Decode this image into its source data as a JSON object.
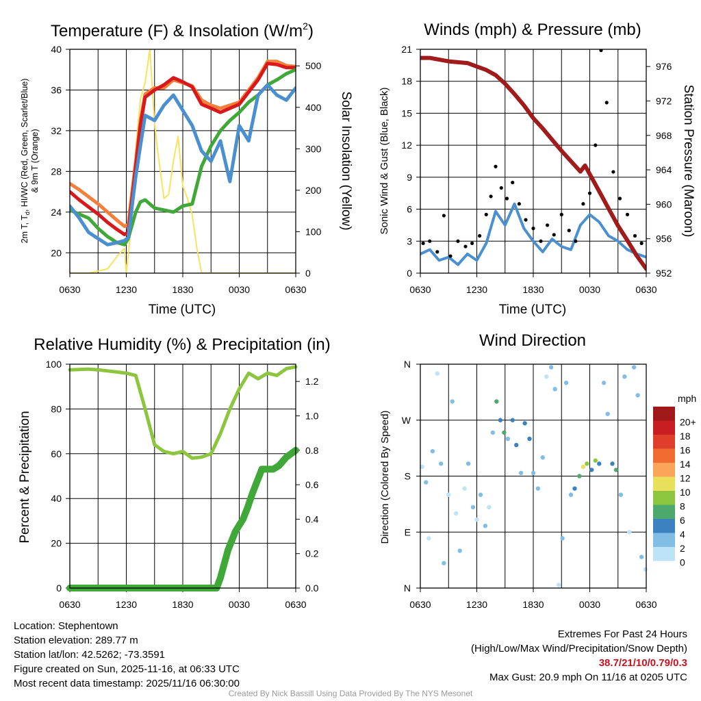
{
  "panels": {
    "temperature": {
      "title_main": "Temperature (F) & Insolation (W/m",
      "title_sup": "2",
      "title_end": ")",
      "xlabel": "Time (UTC)",
      "ylabel_left_1": "2m T, T",
      "ylabel_left_sub": "d",
      "ylabel_left_2": ", HI/WC (Red, Green, Scarlet/Blue)",
      "ylabel_left_3": "& 9m T (Orange)",
      "ylabel_right": "Solar Insolation (Yellow)"
    },
    "winds": {
      "title": "Winds (mph) & Pressure (mb)",
      "xlabel": "Time (UTC)",
      "ylabel_left": "Sonic Wind & Gust (Blue, Black)",
      "ylabel_right": "Station Pressure (Maroon)"
    },
    "humidity": {
      "title": "Relative Humidity (%) & Precipitation (in)",
      "ylabel_left": "Percent & Precipitation"
    },
    "direction": {
      "title": "Wind Direction",
      "ylabel_left": "Direction (Colored By Speed)",
      "legend_title": "mph"
    }
  },
  "chart_data": [
    {
      "type": "line",
      "name": "temperature",
      "x_ticks": [
        "0630",
        "1230",
        "1830",
        "0030",
        "0630"
      ],
      "x_range_hours": [
        0,
        24
      ],
      "ylim_left": [
        18,
        40
      ],
      "yticks_left": [
        20,
        24,
        28,
        32,
        36,
        40
      ],
      "ylim_right": [
        0,
        540
      ],
      "yticks_right": [
        0,
        100,
        200,
        300,
        400,
        500
      ],
      "series": [
        {
          "name": "9m T (Orange)",
          "axis": "left",
          "color": "#f47f3a",
          "x": [
            0,
            1,
            2,
            3,
            4,
            5,
            5.8,
            6.2,
            7,
            7.5,
            8,
            9,
            10,
            11,
            12,
            13,
            14,
            15,
            16,
            17,
            18,
            19,
            20,
            21,
            22,
            23,
            24
          ],
          "y": [
            26.8,
            26.2,
            25.5,
            24.8,
            24.0,
            23.2,
            22.6,
            22.8,
            29.0,
            33.0,
            35.6,
            36.2,
            36.2,
            37.0,
            36.7,
            36.4,
            35.0,
            34.5,
            34.2,
            34.5,
            34.8,
            36.0,
            37.2,
            38.8,
            38.8,
            38.4,
            38.3
          ]
        },
        {
          "name": "2m T (Red)",
          "axis": "left",
          "color": "#d7191c",
          "x": [
            0,
            1,
            2,
            3,
            4,
            5,
            5.8,
            6.2,
            7,
            7.5,
            8,
            9,
            10,
            11,
            12,
            13,
            14,
            15,
            16,
            17,
            18,
            19,
            20,
            21,
            22,
            23,
            24
          ],
          "y": [
            26.0,
            25.2,
            24.5,
            23.8,
            23.0,
            22.3,
            21.8,
            22.0,
            28.5,
            32.5,
            35.3,
            36.0,
            36.5,
            37.2,
            36.8,
            36.3,
            34.6,
            34.2,
            33.8,
            34.2,
            34.6,
            35.8,
            37.0,
            38.6,
            38.5,
            38.2,
            38.2
          ]
        },
        {
          "name": "Td (Green)",
          "axis": "left",
          "color": "#40a838",
          "x": [
            0,
            1,
            2,
            3,
            4,
            5,
            5.8,
            6.2,
            7,
            7.5,
            8,
            9,
            10,
            11,
            12,
            13,
            14,
            15,
            16,
            17,
            18,
            19,
            20,
            21,
            22,
            23,
            24
          ],
          "y": [
            24.2,
            23.8,
            23.4,
            22.4,
            21.6,
            21.0,
            20.8,
            21.4,
            24.0,
            25.0,
            25.2,
            24.4,
            24.2,
            24.0,
            24.6,
            24.8,
            28.5,
            30.5,
            32.0,
            33.0,
            33.8,
            34.8,
            35.5,
            36.5,
            37.0,
            37.6,
            38.0
          ]
        },
        {
          "name": "HI/WC (Blue)",
          "axis": "left",
          "color": "#4a90d0",
          "x": [
            0,
            1,
            2,
            3,
            4,
            5,
            5.8,
            6.2,
            7,
            7.5,
            8,
            9,
            10,
            11,
            12,
            13,
            14,
            15,
            16,
            17,
            18,
            19,
            20,
            21,
            22,
            23,
            24
          ],
          "y": [
            24.6,
            23.4,
            22.0,
            21.4,
            20.8,
            21.0,
            21.2,
            21.5,
            27.5,
            30.5,
            33.5,
            33.0,
            34.5,
            35.5,
            34.0,
            32.5,
            30.0,
            29.0,
            31.0,
            27.0,
            32.5,
            31.0,
            35.5,
            36.5,
            35.5,
            35.0,
            36.2
          ]
        },
        {
          "name": "Solar Insolation (Yellow)",
          "axis": "right",
          "color": "#f9e25f",
          "x": [
            0,
            2,
            4,
            5,
            5.8,
            6.0,
            6.5,
            7.0,
            7.5,
            8.0,
            8.5,
            9.0,
            9.3,
            10.0,
            10.5,
            11.0,
            11.5,
            12.0,
            12.5,
            13.0,
            13.5,
            14.0,
            24.0
          ],
          "y": [
            0,
            0,
            10,
            40,
            60,
            0,
            110,
            300,
            420,
            460,
            540,
            360,
            300,
            180,
            190,
            270,
            330,
            210,
            180,
            140,
            60,
            0,
            0
          ]
        }
      ]
    },
    {
      "type": "line",
      "name": "winds",
      "x_ticks": [
        "0630",
        "1230",
        "1830",
        "0030",
        "0630"
      ],
      "ylim_left": [
        0,
        21
      ],
      "yticks_left": [
        0,
        3,
        6,
        9,
        12,
        15,
        18,
        21
      ],
      "ylim_right": [
        952,
        978
      ],
      "yticks_right": [
        952,
        956,
        960,
        964,
        968,
        972,
        976
      ],
      "series": [
        {
          "name": "Sonic Wind (Blue)",
          "axis": "left",
          "color": "#4a90d0",
          "x": [
            0,
            1,
            2,
            3,
            4,
            5,
            6,
            7,
            8,
            9,
            10,
            11,
            12,
            13,
            14,
            15,
            16,
            17,
            18,
            19,
            20,
            21,
            22,
            23,
            24
          ],
          "y": [
            1.8,
            2.2,
            1.2,
            1.5,
            0.8,
            1.8,
            1.2,
            2.8,
            5.8,
            4.5,
            6.5,
            4.2,
            3.0,
            2.0,
            3.2,
            2.5,
            2.2,
            4.5,
            5.5,
            4.8,
            3.5,
            3.0,
            2.2,
            1.8,
            1.5
          ]
        },
        {
          "name": "Gust (Black)",
          "axis": "left",
          "color": "#000000",
          "style": "dots",
          "x": [
            0.3,
            1,
            1.8,
            2.5,
            3.2,
            4,
            4.8,
            5.5,
            6.3,
            7,
            7.5,
            8,
            8.6,
            9.2,
            9.8,
            10.5,
            11.2,
            12,
            12.8,
            13.5,
            14.2,
            15,
            15.8,
            16.5,
            17.3,
            18,
            18.6,
            19.2,
            19.8,
            20.5,
            21.2,
            22,
            22.8,
            23.5
          ],
          "y": [
            2.8,
            3.0,
            2.0,
            5.4,
            1.6,
            3.0,
            2.5,
            2.8,
            3.5,
            5.5,
            7.2,
            10.0,
            8.0,
            7.0,
            8.5,
            6.5,
            5.0,
            4.2,
            3.0,
            4.5,
            3.6,
            5.5,
            4.0,
            3.0,
            6.5,
            7.5,
            12.0,
            20.9,
            16.0,
            9.5,
            7.0,
            5.5,
            3.5,
            2.8
          ]
        },
        {
          "name": "Station Pressure (Maroon)",
          "axis": "right",
          "color": "#a01c1c",
          "x": [
            0,
            1,
            2,
            3,
            4,
            5,
            6,
            7,
            8,
            9,
            10,
            11,
            12,
            13,
            14,
            15,
            16,
            17,
            17.5,
            18,
            19,
            20,
            21,
            22,
            23,
            24
          ],
          "y": [
            977.0,
            977.0,
            976.8,
            976.6,
            976.5,
            976.4,
            976.0,
            975.6,
            975.0,
            974.0,
            972.8,
            971.5,
            970.0,
            968.8,
            967.5,
            966.2,
            965.0,
            963.8,
            964.5,
            963.5,
            961.5,
            959.5,
            957.5,
            955.8,
            954.0,
            952.5
          ]
        }
      ]
    },
    {
      "type": "line",
      "name": "humidity",
      "x_ticks": [
        "0630",
        "1230",
        "1830",
        "0030",
        "0630"
      ],
      "ylim_left": [
        0,
        100
      ],
      "yticks_left": [
        0,
        20,
        40,
        60,
        80,
        100
      ],
      "ylim_right": [
        0,
        1.3
      ],
      "yticks_right": [
        0.0,
        0.2,
        0.4,
        0.6,
        0.8,
        1.0,
        1.2
      ],
      "series": [
        {
          "name": "Relative Humidity",
          "axis": "left",
          "color": "#8cc63f",
          "x": [
            0,
            1,
            2,
            3,
            4,
            5,
            6,
            7,
            8,
            9,
            10,
            11,
            12,
            13,
            14,
            15,
            16,
            17,
            18,
            19,
            20,
            21,
            22,
            23,
            24
          ],
          "y": [
            97.5,
            97.6,
            97.8,
            97.5,
            97.0,
            96.5,
            96.0,
            95.0,
            80.0,
            64.0,
            61.0,
            60.0,
            61.0,
            58.0,
            58.5,
            60.0,
            69.0,
            80.0,
            89.0,
            96.0,
            93.5,
            96.0,
            95.0,
            98.0,
            98.8
          ]
        },
        {
          "name": "Precipitation",
          "axis": "right",
          "color": "#40a838",
          "x": [
            0,
            15.6,
            16,
            16.8,
            17.6,
            18.4,
            18.9,
            19.4,
            20.4,
            21,
            21.6,
            22.2,
            23,
            24
          ],
          "y": [
            0,
            0,
            0.06,
            0.22,
            0.33,
            0.4,
            0.47,
            0.55,
            0.69,
            0.69,
            0.69,
            0.71,
            0.76,
            0.8
          ]
        }
      ]
    },
    {
      "type": "scatter",
      "name": "wind_direction",
      "x_ticks": [
        "0630",
        "1230",
        "1830",
        "0030",
        "0630"
      ],
      "y_ticks": [
        "N",
        "E",
        "S",
        "W",
        "N"
      ],
      "ylim_degrees": [
        0,
        360
      ],
      "legend_labels": [
        "20+",
        "18",
        "16",
        "14",
        "12",
        "10",
        "8",
        "6",
        "4",
        "2",
        "0"
      ],
      "legend_colors": [
        "#a01818",
        "#c81e23",
        "#e03e2c",
        "#f06c30",
        "#fba55a",
        "#e8e05a",
        "#8cc63f",
        "#4ca86c",
        "#3c82c0",
        "#82bde6",
        "#bfe3f6"
      ],
      "points": [
        {
          "x": 0.2,
          "y": 195,
          "s": 1
        },
        {
          "x": 0.6,
          "y": 170,
          "s": 2
        },
        {
          "x": 0.9,
          "y": 80,
          "s": 1
        },
        {
          "x": 1.3,
          "y": 220,
          "s": 2
        },
        {
          "x": 1.8,
          "y": 345,
          "s": 1
        },
        {
          "x": 2.2,
          "y": 200,
          "s": 3
        },
        {
          "x": 2.5,
          "y": 40,
          "s": 2
        },
        {
          "x": 3.0,
          "y": 150,
          "s": 1
        },
        {
          "x": 3.4,
          "y": 300,
          "s": 2
        },
        {
          "x": 3.8,
          "y": 120,
          "s": 1
        },
        {
          "x": 4.2,
          "y": 60,
          "s": 2
        },
        {
          "x": 4.7,
          "y": 160,
          "s": 1
        },
        {
          "x": 5.1,
          "y": 200,
          "s": 2
        },
        {
          "x": 5.6,
          "y": 130,
          "s": 2
        },
        {
          "x": 6.0,
          "y": 110,
          "s": 1
        },
        {
          "x": 6.4,
          "y": 150,
          "s": 2
        },
        {
          "x": 6.9,
          "y": 100,
          "s": 3
        },
        {
          "x": 7.3,
          "y": 130,
          "s": 1
        },
        {
          "x": 7.7,
          "y": 250,
          "s": 2
        },
        {
          "x": 8.1,
          "y": 300,
          "s": 7
        },
        {
          "x": 8.5,
          "y": 270,
          "s": 4
        },
        {
          "x": 8.9,
          "y": 250,
          "s": 6
        },
        {
          "x": 9.3,
          "y": 240,
          "s": 3
        },
        {
          "x": 9.8,
          "y": 270,
          "s": 5
        },
        {
          "x": 10.2,
          "y": 230,
          "s": 4
        },
        {
          "x": 10.7,
          "y": 185,
          "s": 3
        },
        {
          "x": 11.1,
          "y": 265,
          "s": 5
        },
        {
          "x": 11.6,
          "y": 240,
          "s": 4
        },
        {
          "x": 12.0,
          "y": 185,
          "s": 2
        },
        {
          "x": 12.5,
          "y": 160,
          "s": 3
        },
        {
          "x": 13.0,
          "y": 210,
          "s": 3
        },
        {
          "x": 13.4,
          "y": 340,
          "s": 1
        },
        {
          "x": 13.9,
          "y": 355,
          "s": 2
        },
        {
          "x": 14.3,
          "y": 320,
          "s": 3
        },
        {
          "x": 14.7,
          "y": 5,
          "s": 1
        },
        {
          "x": 15.1,
          "y": 80,
          "s": 2
        },
        {
          "x": 15.5,
          "y": 330,
          "s": 2
        },
        {
          "x": 16.0,
          "y": 150,
          "s": 2
        },
        {
          "x": 16.4,
          "y": 160,
          "s": 4
        },
        {
          "x": 16.9,
          "y": 180,
          "s": 6
        },
        {
          "x": 17.3,
          "y": 195,
          "s": 10
        },
        {
          "x": 17.7,
          "y": 200,
          "s": 9
        },
        {
          "x": 18.2,
          "y": 190,
          "s": 5
        },
        {
          "x": 18.6,
          "y": 205,
          "s": 8
        },
        {
          "x": 19.0,
          "y": 200,
          "s": 4
        },
        {
          "x": 19.5,
          "y": 330,
          "s": 3
        },
        {
          "x": 19.9,
          "y": 280,
          "s": 2
        },
        {
          "x": 20.4,
          "y": 200,
          "s": 5
        },
        {
          "x": 20.8,
          "y": 190,
          "s": 6
        },
        {
          "x": 21.3,
          "y": 150,
          "s": 2
        },
        {
          "x": 21.7,
          "y": 340,
          "s": 2
        },
        {
          "x": 22.2,
          "y": 90,
          "s": 1
        },
        {
          "x": 22.7,
          "y": 355,
          "s": 3
        },
        {
          "x": 23.1,
          "y": 310,
          "s": 2
        },
        {
          "x": 23.5,
          "y": 50,
          "s": 2
        },
        {
          "x": 23.9,
          "y": 30,
          "s": 1
        }
      ]
    }
  ],
  "info": {
    "location": "Location: Stephentown",
    "elevation": "Station elevation: 289.77 m",
    "latlon": "Station lat/lon: 42.5262; -73.3591",
    "created": "Figure created on Sun, 2025-11-16, at 06:33 UTC",
    "recent": "Most recent data timestamp: 2025/11/16 06:30:00",
    "extremes_title": "Extremes For Past 24 Hours",
    "extremes_desc": "(High/Low/Max Wind/Precipitation/Snow Depth)",
    "extremes_values": "38.7/21/10/0.79/0.3",
    "max_gust": "Max Gust: 20.9 mph On 11/16 at 0205 UTC",
    "credit": "Created By Nick Bassill Using Data Provided By The NYS Mesonet"
  }
}
